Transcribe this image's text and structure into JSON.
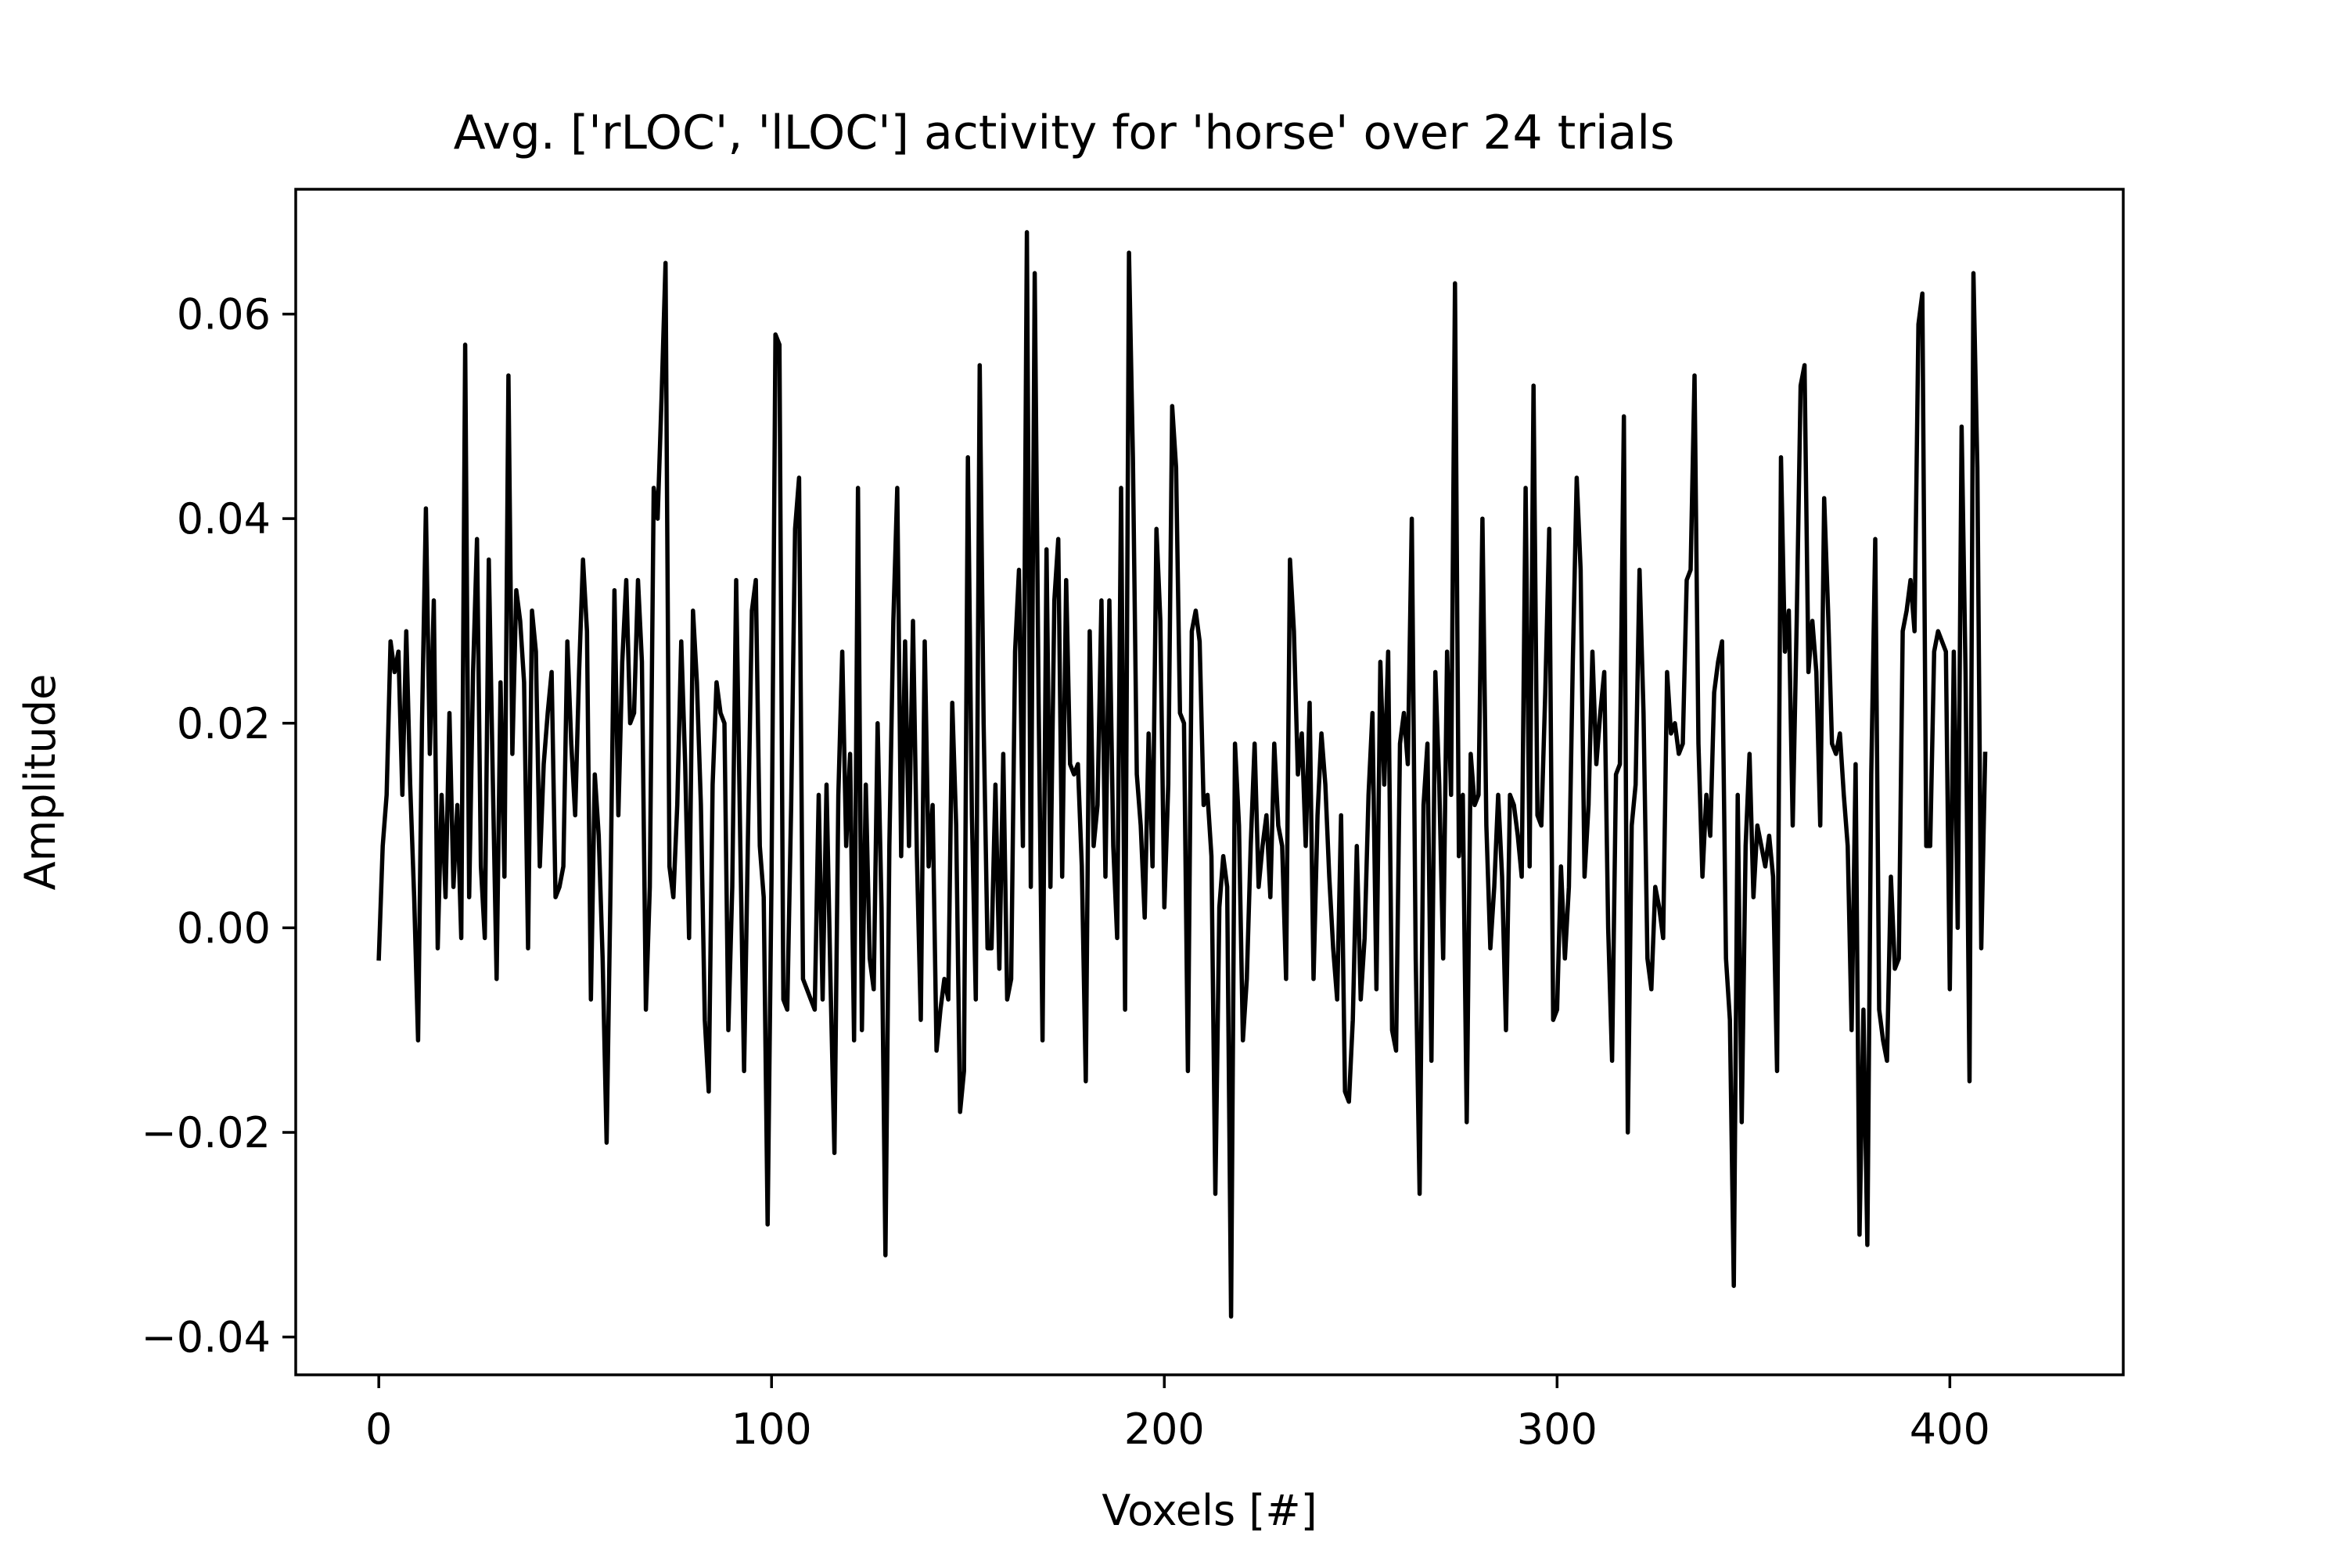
{
  "chart_data": {
    "type": "line",
    "title": "Avg. ['rLOC', 'lLOC'] activity for 'horse' over 24 trials",
    "xlabel": "Voxels [#]",
    "ylabel": "Amplitude",
    "xlim": [
      -21.15,
      444.15
    ],
    "ylim": [
      -0.0437,
      0.0722
    ],
    "xticks": [
      0,
      100,
      200,
      300,
      400
    ],
    "xtick_labels": [
      "0",
      "100",
      "200",
      "300",
      "400"
    ],
    "yticks": [
      -0.04,
      -0.02,
      0.0,
      0.02,
      0.04,
      0.06
    ],
    "ytick_labels": [
      "−0.04",
      "−0.02",
      "0.00",
      "0.02",
      "0.04",
      "0.06"
    ],
    "grid": false,
    "legend": "none",
    "line_color": "#000000",
    "series": [
      {
        "x_start": 0,
        "x_step": 1,
        "values": [
          -0.003,
          0.008,
          0.013,
          0.028,
          0.025,
          0.027,
          0.013,
          0.029,
          0.014,
          0.003,
          -0.011,
          0.02,
          0.041,
          0.017,
          0.032,
          -0.002,
          0.013,
          0.003,
          0.021,
          0.004,
          0.012,
          -0.001,
          0.057,
          0.003,
          0.025,
          0.038,
          0.006,
          -0.001,
          0.036,
          0.015,
          -0.005,
          0.024,
          0.005,
          0.054,
          0.017,
          0.033,
          0.03,
          0.024,
          -0.002,
          0.031,
          0.027,
          0.006,
          0.016,
          0.021,
          0.025,
          0.003,
          0.004,
          0.006,
          0.028,
          0.018,
          0.011,
          0.025,
          0.036,
          0.029,
          -0.007,
          0.015,
          0.009,
          -0.003,
          -0.021,
          0.004,
          0.033,
          0.011,
          0.026,
          0.034,
          0.02,
          0.021,
          0.034,
          0.026,
          -0.008,
          0.004,
          0.043,
          0.04,
          0.052,
          0.065,
          0.006,
          0.003,
          0.012,
          0.028,
          0.016,
          -0.001,
          0.031,
          0.024,
          0.012,
          -0.009,
          -0.016,
          0.014,
          0.024,
          0.021,
          0.02,
          -0.01,
          0.004,
          0.034,
          0.009,
          -0.014,
          0.009,
          0.031,
          0.034,
          0.008,
          0.003,
          -0.029,
          0.005,
          0.058,
          0.057,
          -0.007,
          -0.008,
          0.012,
          0.039,
          0.044,
          -0.005,
          -0.006,
          -0.007,
          -0.008,
          0.013,
          -0.007,
          0.014,
          -0.005,
          -0.022,
          0.013,
          0.027,
          0.008,
          0.017,
          -0.011,
          0.043,
          -0.01,
          0.014,
          -0.003,
          -0.006,
          0.02,
          0.002,
          -0.032,
          0.008,
          0.03,
          0.043,
          0.007,
          0.028,
          0.008,
          0.03,
          0.007,
          -0.009,
          0.028,
          0.006,
          0.012,
          -0.012,
          -0.008,
          -0.005,
          -0.007,
          0.022,
          0.01,
          -0.018,
          -0.014,
          0.046,
          0.011,
          -0.007,
          0.055,
          0.02,
          -0.002,
          -0.002,
          0.014,
          -0.004,
          0.017,
          -0.007,
          -0.005,
          0.027,
          0.035,
          0.008,
          0.068,
          0.004,
          0.064,
          0.022,
          -0.011,
          0.037,
          0.004,
          0.032,
          0.038,
          0.005,
          0.034,
          0.016,
          0.015,
          0.016,
          0.006,
          -0.015,
          0.029,
          0.008,
          0.012,
          0.032,
          0.005,
          0.032,
          0.008,
          -0.001,
          0.043,
          -0.008,
          0.066,
          0.046,
          0.015,
          0.01,
          0.001,
          0.019,
          0.006,
          0.039,
          0.03,
          0.002,
          0.014,
          0.051,
          0.045,
          0.021,
          0.02,
          -0.014,
          0.029,
          0.031,
          0.028,
          0.012,
          0.013,
          0.007,
          -0.026,
          0.002,
          0.007,
          0.004,
          -0.038,
          0.018,
          0.01,
          -0.011,
          -0.005,
          0.008,
          0.018,
          0.004,
          0.008,
          0.011,
          0.003,
          0.018,
          0.01,
          0.008,
          -0.005,
          0.036,
          0.029,
          0.015,
          0.019,
          0.008,
          0.022,
          -0.005,
          0.011,
          0.019,
          0.014,
          0.005,
          -0.002,
          -0.007,
          0.011,
          -0.016,
          -0.017,
          -0.009,
          0.008,
          -0.007,
          -0.001,
          0.013,
          0.021,
          -0.006,
          0.026,
          0.014,
          0.027,
          -0.01,
          -0.012,
          0.018,
          0.021,
          0.016,
          0.04,
          -0.003,
          -0.026,
          0.012,
          0.018,
          -0.013,
          0.025,
          0.014,
          -0.003,
          0.027,
          0.013,
          0.063,
          0.007,
          0.013,
          -0.019,
          0.017,
          0.012,
          0.013,
          0.04,
          0.01,
          -0.002,
          0.004,
          0.013,
          0.005,
          -0.01,
          0.013,
          0.012,
          0.009,
          0.005,
          0.043,
          0.006,
          0.053,
          0.011,
          0.01,
          0.023,
          0.039,
          -0.009,
          -0.008,
          0.006,
          -0.003,
          0.004,
          0.026,
          0.044,
          0.035,
          0.005,
          0.012,
          0.027,
          0.016,
          0.021,
          0.025,
          0.0,
          -0.013,
          0.015,
          0.016,
          0.05,
          -0.02,
          0.01,
          0.014,
          0.035,
          0.021,
          -0.003,
          -0.006,
          0.004,
          0.002,
          -0.001,
          0.025,
          0.019,
          0.02,
          0.017,
          0.018,
          0.034,
          0.035,
          0.054,
          0.018,
          0.005,
          0.013,
          0.009,
          0.023,
          0.026,
          0.028,
          -0.003,
          -0.009,
          -0.035,
          0.013,
          -0.019,
          0.008,
          0.017,
          0.003,
          0.01,
          0.008,
          0.006,
          0.009,
          0.005,
          -0.014,
          0.046,
          0.027,
          0.031,
          0.01,
          0.03,
          0.053,
          0.055,
          0.025,
          0.03,
          0.025,
          0.01,
          0.042,
          0.031,
          0.018,
          0.017,
          0.019,
          0.013,
          0.008,
          -0.01,
          0.016,
          -0.03,
          -0.008,
          -0.031,
          0.015,
          0.038,
          -0.008,
          -0.011,
          -0.013,
          0.005,
          -0.004,
          -0.003,
          0.029,
          0.031,
          0.034,
          0.029,
          0.059,
          0.062,
          0.008,
          0.008,
          0.027,
          0.029,
          0.028,
          0.027,
          -0.006,
          0.027,
          0.0,
          0.049,
          0.025,
          -0.015,
          0.064,
          0.045,
          -0.002,
          0.017
        ]
      }
    ]
  }
}
